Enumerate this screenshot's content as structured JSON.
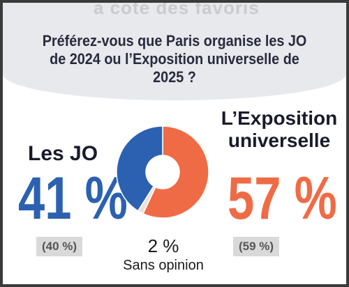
{
  "background_text": "a cote des favoris",
  "question": "Préférez-vous que Paris organise les JO de 2024 ou l’Exposition universelle de 2025 ?",
  "chart_data": {
    "type": "pie",
    "style": "donut",
    "slices": [
      {
        "label": "L’Exposition universelle",
        "value": 57,
        "color": "#ef6b45"
      },
      {
        "label": "Sans opinion",
        "value": 2,
        "color": "#e8e3df"
      },
      {
        "label": "Les JO",
        "value": 41,
        "color": "#2b61b0"
      }
    ]
  },
  "options": {
    "jo": {
      "label": "Les JO",
      "percent": "41 %",
      "previous": "(40 %)"
    },
    "expo": {
      "label": "L’Exposition universelle",
      "percent": "57 %",
      "previous": "(59 %)"
    },
    "none": {
      "percent": "2 %",
      "label": "Sans opinion"
    }
  }
}
